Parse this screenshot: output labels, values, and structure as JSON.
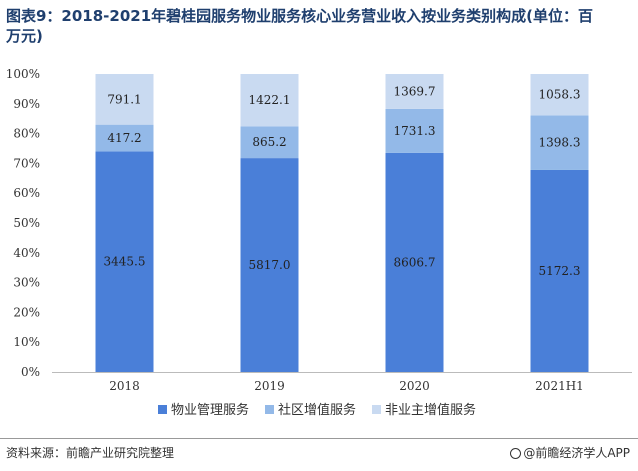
{
  "title": "图表9：2018-2021年碧桂园服务物业服务核心业务营业收入按业务类别构成(单位：百万元)",
  "footer": {
    "source": "资料来源：前瞻产业研究院整理",
    "brand": "@前瞻经济学人APP"
  },
  "colors": {
    "series": [
      "#4a7fd8",
      "#93b9e8",
      "#c9daf1"
    ]
  },
  "chart_data": {
    "type": "bar",
    "stacked": "percent",
    "categories": [
      "2018",
      "2019",
      "2020",
      "2021H1"
    ],
    "series": [
      {
        "name": "物业管理服务",
        "values": [
          3445.5,
          5817.0,
          8606.7,
          5172.3
        ],
        "labels": [
          "3445.5",
          "5817.0",
          "8606.7",
          "5172.3"
        ]
      },
      {
        "name": "社区增值服务",
        "values": [
          417.2,
          865.2,
          1731.3,
          1398.3
        ],
        "labels": [
          "417.2",
          "865.2",
          "1731.3",
          "1398.3"
        ]
      },
      {
        "name": "非业主增值服务",
        "values": [
          791.1,
          1422.1,
          1369.7,
          1058.3
        ],
        "labels": [
          "791.1",
          "1422.1",
          "1369.7",
          "1058.3"
        ]
      }
    ],
    "yticks": [
      "0%",
      "10%",
      "20%",
      "30%",
      "40%",
      "50%",
      "60%",
      "70%",
      "80%",
      "90%",
      "100%"
    ],
    "ylim": [
      0,
      100
    ],
    "grid": false,
    "legend": "bottom"
  }
}
